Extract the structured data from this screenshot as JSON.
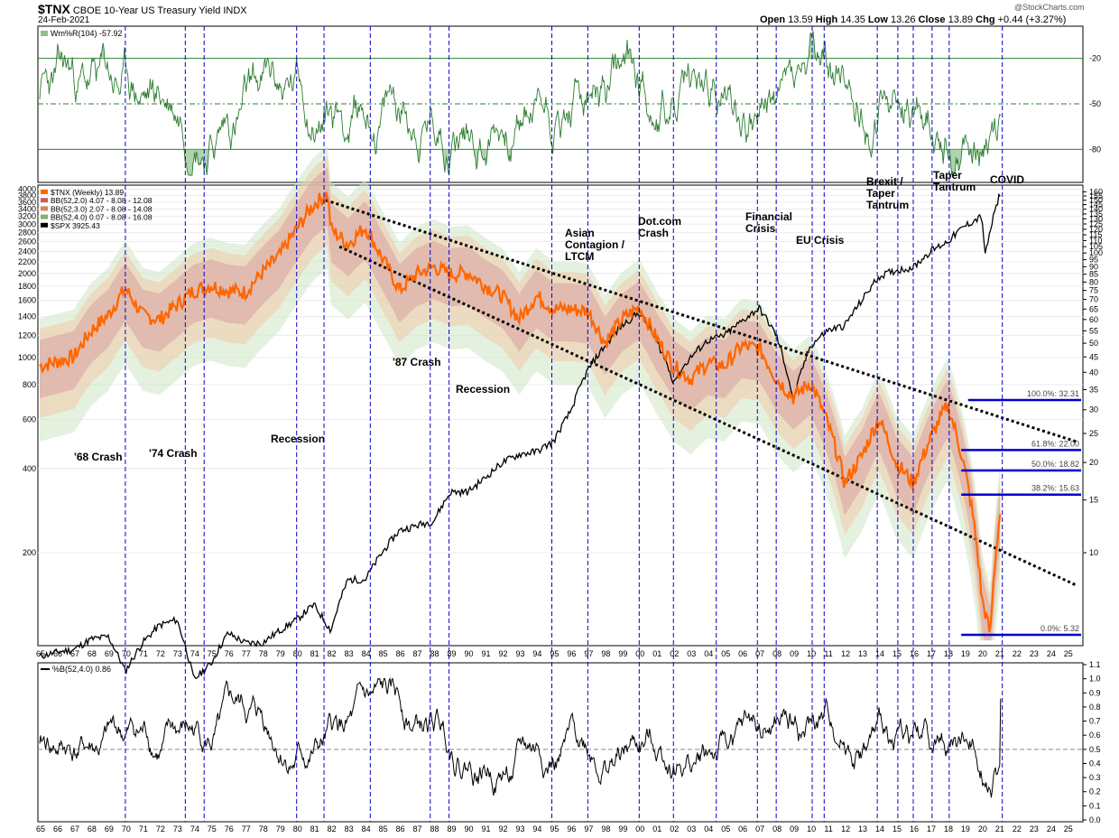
{
  "header": {
    "symbol": "$TNX",
    "title": "CBOE 10-Year US Treasury Yield INDX",
    "date": "24-Feb-2021",
    "open_label": "Open",
    "open": "13.59",
    "high_label": "High",
    "high": "14.35",
    "low_label": "Low",
    "low": "13.26",
    "close_label": "Close",
    "close": "13.89",
    "chg_label": "Chg",
    "chg": "+0.44 (+3.27%)",
    "watermark": "@StockCharts.com"
  },
  "colors": {
    "tnx": "#ff6600",
    "spx": "#000000",
    "bb2": "#d9a0a0",
    "bb3": "#f0c8a8",
    "bb4": "#cfe6c4",
    "willr": "#2e7d32",
    "channel": "#000000",
    "fib": "#0000cc",
    "vline": "#0000cc"
  },
  "chart_data": [
    {
      "panel": "top",
      "type": "line",
      "legend": "Wm%R(104) -57.92",
      "y_ticks": [
        -20,
        -50,
        -80
      ],
      "ylim": [
        -100,
        0
      ],
      "series": [
        {
          "name": "Wm%R(104)",
          "last": -57.92
        }
      ]
    },
    {
      "panel": "main",
      "type": "line",
      "left_axis_ticks": [
        4000,
        3800,
        3600,
        3400,
        3200,
        3000,
        2800,
        2600,
        2400,
        2200,
        2000,
        1800,
        1600,
        1400,
        1200,
        1000,
        800,
        600,
        400,
        200
      ],
      "right_axis_ticks": [
        160,
        155,
        150,
        145,
        140,
        135,
        130,
        125,
        120,
        115,
        110,
        105,
        100,
        95,
        90,
        85,
        80,
        75,
        70,
        65,
        60,
        55,
        50,
        45,
        40,
        35,
        30,
        25,
        20,
        15,
        10
      ],
      "x_ticks": [
        "65",
        "66",
        "67",
        "68",
        "69",
        "70",
        "71",
        "72",
        "73",
        "74",
        "75",
        "76",
        "77",
        "78",
        "79",
        "80",
        "81",
        "82",
        "83",
        "84",
        "85",
        "86",
        "87",
        "88",
        "89",
        "90",
        "91",
        "92",
        "93",
        "94",
        "95",
        "96",
        "97",
        "98",
        "99",
        "00",
        "01",
        "02",
        "03",
        "04",
        "05",
        "06",
        "07",
        "08",
        "09",
        "10",
        "11",
        "12",
        "13",
        "14",
        "15",
        "16",
        "17",
        "18",
        "19",
        "20",
        "21",
        "22",
        "23",
        "24",
        "25"
      ],
      "legend": [
        {
          "text": "$TNX (Weekly) 13.89"
        },
        {
          "text": "BB(52,2.0) 4.07 - 8.08 - 12.08"
        },
        {
          "text": "BB(52,3.0) 2.07 - 8.08 - 14.08"
        },
        {
          "text": "BB(52,4.0) 0.07 - 8.08 - 16.08"
        },
        {
          "text": "$SPX 3925.43"
        }
      ],
      "series": [
        {
          "name": "$TNX (Weekly)",
          "axis": "right",
          "x": [
            1965,
            1967,
            1968,
            1969,
            1970,
            1971,
            1972,
            1973,
            1974,
            1975,
            1976,
            1977,
            1978,
            1979,
            1980,
            1981,
            1981.8,
            1982,
            1983,
            1984,
            1985,
            1986,
            1987,
            1988,
            1989,
            1990,
            1991,
            1992,
            1993,
            1994,
            1995,
            1996,
            1997,
            1998,
            1999,
            2000,
            2001,
            2002,
            2003,
            2004,
            2005,
            2006,
            2007,
            2008,
            2009,
            2010,
            2011,
            2012,
            2013,
            2014,
            2015,
            2016,
            2017,
            2018,
            2019,
            2020,
            2020.5,
            2021.1
          ],
          "y": [
            42,
            45,
            55,
            62,
            76,
            62,
            60,
            67,
            75,
            78,
            75,
            74,
            86,
            98,
            120,
            145,
            158,
            120,
            107,
            122,
            96,
            75,
            85,
            90,
            85,
            86,
            78,
            72,
            60,
            72,
            65,
            65,
            64,
            50,
            60,
            66,
            52,
            42,
            38,
            43,
            42,
            49,
            48,
            38,
            33,
            37,
            27,
            17,
            21,
            28,
            20,
            17,
            24,
            31,
            19,
            7,
            5.3,
            13.89
          ]
        },
        {
          "name": "$SPX",
          "axis": "left",
          "x": [
            1965,
            1966,
            1967,
            1968,
            1969,
            1970,
            1971,
            1972,
            1973,
            1974,
            1975,
            1976,
            1977,
            1978,
            1979,
            1980,
            1981,
            1982,
            1983,
            1984,
            1985,
            1986,
            1987,
            1988,
            1989,
            1990,
            1991,
            1992,
            1993,
            1994,
            1995,
            1996,
            1997,
            1998,
            1999,
            2000,
            2001,
            2002,
            2003,
            2004,
            2005,
            2006,
            2007,
            2008,
            2009,
            2010,
            2011,
            2012,
            2013,
            2014,
            2015,
            2016,
            2017,
            2018,
            2019,
            2020,
            2020.2,
            2021.1
          ],
          "y": [
            85,
            88,
            90,
            98,
            100,
            75,
            95,
            110,
            115,
            70,
            80,
            103,
            95,
            95,
            105,
            115,
            130,
            105,
            160,
            160,
            200,
            240,
            250,
            260,
            330,
            330,
            370,
            420,
            450,
            460,
            500,
            640,
            900,
            1100,
            1300,
            1450,
            1150,
            820,
            1000,
            1150,
            1200,
            1350,
            1500,
            1200,
            700,
            1100,
            1250,
            1300,
            1600,
            1950,
            2050,
            2100,
            2400,
            2600,
            2950,
            3200,
            2300,
            3925.43
          ]
        }
      ],
      "fibonacci": [
        {
          "label": "100.0%: 32.31",
          "value": 32.31
        },
        {
          "label": "61.8%: 22.00",
          "value": 22.0
        },
        {
          "label": "50.0%: 18.82",
          "value": 18.82
        },
        {
          "label": "38.2%: 15.63",
          "value": 15.63
        },
        {
          "label": "0.0%: 5.32",
          "value": 5.32
        }
      ],
      "annotations": [
        {
          "text": "'68 Crash"
        },
        {
          "text": "'74 Crash"
        },
        {
          "text": "Recession"
        },
        {
          "text": "'87 Crash"
        },
        {
          "text": "Recession"
        },
        {
          "text": "Asian\nContagion /\nLTCM"
        },
        {
          "text": "Dot.com\nCrash"
        },
        {
          "text": "Financial\nCrisis"
        },
        {
          "text": "EU Crisis"
        },
        {
          "text": "Brexit /\nTaper\nTantrum"
        },
        {
          "text": "Taper\nTantrum"
        },
        {
          "text": "COVID"
        }
      ],
      "event_years": [
        1970,
        1973.5,
        1974.6,
        1980,
        1981.6,
        1984.3,
        1987.8,
        1988.9,
        1994.9,
        1997,
        2000,
        2002,
        2004.5,
        2006.9,
        2008,
        2010.1,
        2010.8,
        2013.9,
        2015.1,
        2016,
        2017.1,
        2018.1,
        2021.2
      ]
    },
    {
      "panel": "bottom",
      "type": "line",
      "legend": "%B(52,4.0) 0.86",
      "y_ticks": [
        "1.1",
        "1.0",
        "0.9",
        "0.8",
        "0.7",
        "0.6",
        "0.5",
        "0.4",
        "0.3",
        "0.2",
        "0.1",
        "0.0"
      ],
      "ylim": [
        0,
        1.1
      ],
      "series": [
        {
          "name": "%B(52,4.0)",
          "last": 0.86
        }
      ]
    }
  ]
}
